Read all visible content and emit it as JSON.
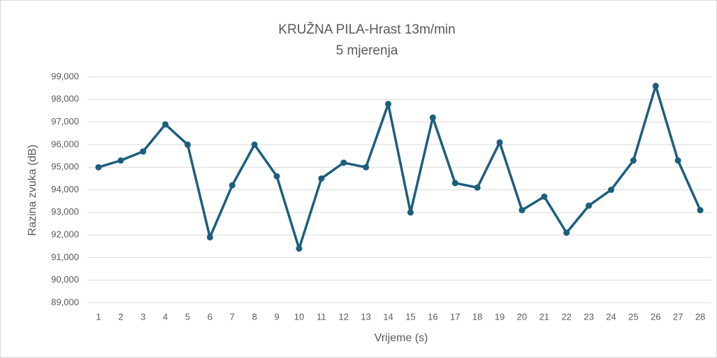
{
  "chart_data": {
    "type": "line",
    "title": "KRUŽNA PILA-Hrast 13m/min",
    "subtitle": "5 mjerenja",
    "x_label": "Vrijeme (s)",
    "y_label": "Razina zvuka (dB)",
    "categories": [
      "1",
      "2",
      "3",
      "4",
      "5",
      "6",
      "7",
      "8",
      "9",
      "10",
      "11",
      "12",
      "13",
      "14",
      "15",
      "16",
      "17",
      "18",
      "19",
      "20",
      "21",
      "22",
      "23",
      "24",
      "25",
      "26",
      "27",
      "28"
    ],
    "series": [
      {
        "name": "Razina zvuka",
        "color": "#1b5e7e",
        "values": [
          95.0,
          95.3,
          95.7,
          96.9,
          96.0,
          91.9,
          94.2,
          96.0,
          94.6,
          91.4,
          94.5,
          95.2,
          95.0,
          97.8,
          93.0,
          97.2,
          94.3,
          94.1,
          96.1,
          93.1,
          93.7,
          92.1,
          93.3,
          94.0,
          95.3,
          98.6,
          95.3,
          93.1
        ]
      }
    ],
    "ylim": [
      89,
      99
    ],
    "yticks": [
      {
        "value": 89,
        "label": "89,000"
      },
      {
        "value": 90,
        "label": "90,000"
      },
      {
        "value": 91,
        "label": "91,000"
      },
      {
        "value": 92,
        "label": "92,000"
      },
      {
        "value": 93,
        "label": "93,000"
      },
      {
        "value": 94,
        "label": "94,000"
      },
      {
        "value": 95,
        "label": "95,000"
      },
      {
        "value": 96,
        "label": "96,000"
      },
      {
        "value": 97,
        "label": "97,000"
      },
      {
        "value": 98,
        "label": "98,000"
      },
      {
        "value": 99,
        "label": "99,000"
      }
    ],
    "grid": true
  }
}
